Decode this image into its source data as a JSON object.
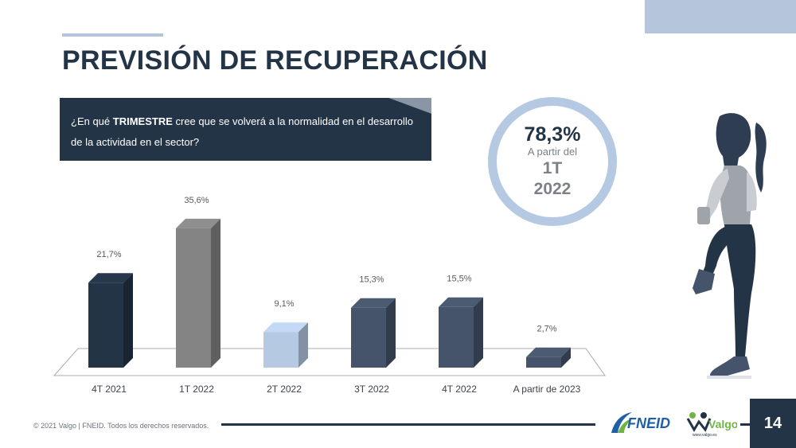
{
  "title": "PREVISIÓN DE RECUPERACIÓN",
  "question": {
    "prefix": "¿En qué ",
    "emphasis": "TRIMESTRE",
    "suffix": " cree que se volverá a la normalidad en el desarrollo de la actividad en el sector?"
  },
  "highlight": {
    "value": "78,3%",
    "label": "A partir del",
    "period_line1": "1T",
    "period_line2": "2022"
  },
  "chart_data": {
    "type": "bar",
    "categories": [
      "4T 2021",
      "1T 2022",
      "2T 2022",
      "3T 2022",
      "4T 2022",
      "A partir de 2023"
    ],
    "values": [
      21.7,
      35.6,
      9.1,
      15.3,
      15.5,
      2.7
    ],
    "data_labels": [
      "21,7%",
      "35,6%",
      "9,1%",
      "15,3%",
      "15,5%",
      "2,7%"
    ],
    "bar_colors": [
      "#243447",
      "#848484",
      "#b5c9e3",
      "#45546a",
      "#45546a",
      "#45546a"
    ],
    "unit": "%",
    "grid": false,
    "legend": "none"
  },
  "footer": {
    "copyright": "© 2021 Valgo | FNEID. Todos los derechos reservados.",
    "page_number": "14",
    "fneid_logo": "FNEID",
    "valgo_logo": "Valgo",
    "valgo_url": "www.valgo.es"
  },
  "colors": {
    "navy": "#243447",
    "accent_light_blue": "#b5c6dc",
    "circle_ring": "#b5c9e3"
  }
}
